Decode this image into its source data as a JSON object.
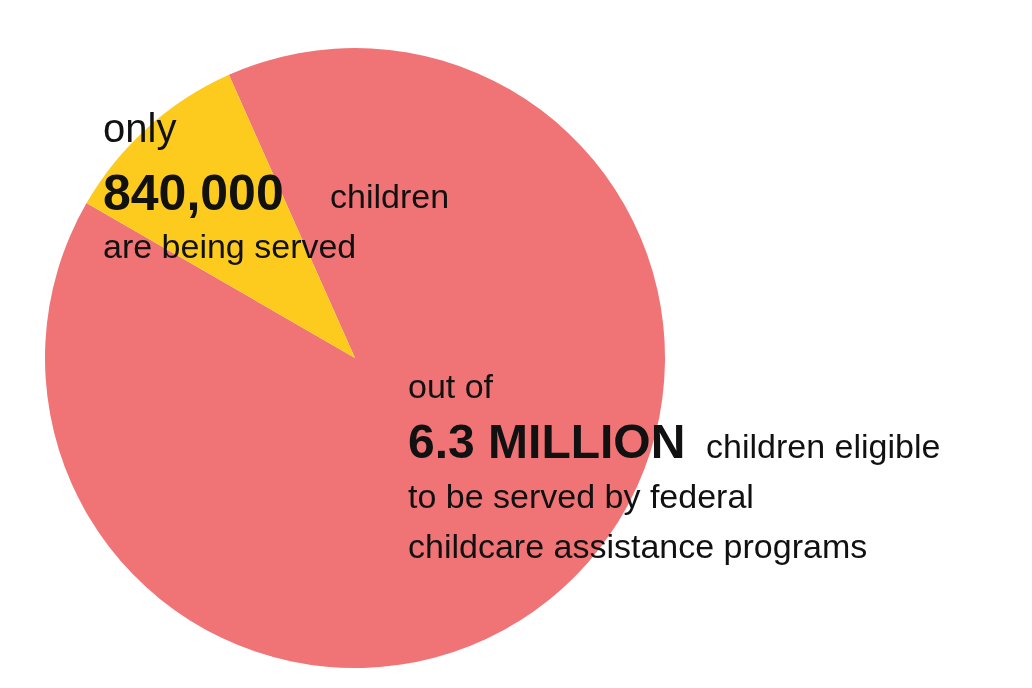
{
  "chart_data": {
    "type": "pie",
    "categories": [
      null,
      null
    ],
    "values": [
      90,
      10
    ],
    "colors": [
      "#f07375",
      "#fdcb1d"
    ],
    "annotations": [
      "only",
      "840,000",
      "children",
      "are being served",
      "out of",
      "6.3 MILLION",
      "children eligible",
      "to be served by federal",
      "childcare assistance programs"
    ]
  }
}
